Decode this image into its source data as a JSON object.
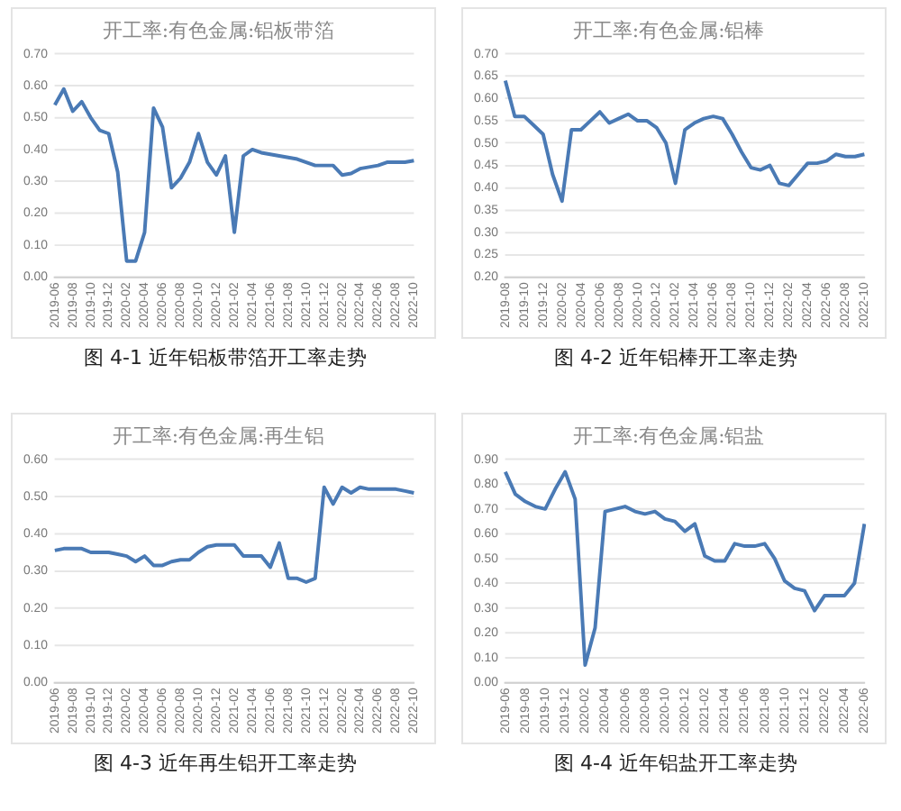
{
  "chart_data": [
    {
      "type": "line",
      "title": "开工率:有色金属:铝板带箔",
      "annotations": [
        "图 4-1 近年铝板带箔开工率走势"
      ],
      "categories": [
        "2019-06",
        null,
        "2019-08",
        null,
        "2019-10",
        null,
        "2019-12",
        null,
        "2020-02",
        null,
        "2020-04",
        null,
        "2020-06",
        null,
        "2020-08",
        null,
        "2020-10",
        null,
        "2020-12",
        null,
        "2021-02",
        null,
        "2021-04",
        null,
        "2021-06",
        null,
        "2021-08",
        null,
        "2021-10",
        null,
        "2021-12",
        null,
        "2022-02",
        null,
        "2022-04",
        null,
        "2022-06",
        null,
        "2022-08",
        null,
        "2022-10"
      ],
      "series": [
        {
          "color": "#4a7ab5",
          "values": [
            0.54,
            0.59,
            0.52,
            0.55,
            0.5,
            0.46,
            0.45,
            0.33,
            0.05,
            0.05,
            0.14,
            0.53,
            0.47,
            0.28,
            0.31,
            0.36,
            0.45,
            0.36,
            0.32,
            0.38,
            0.14,
            0.38,
            0.4,
            0.39,
            0.385,
            0.38,
            0.375,
            0.37,
            0.36,
            0.35,
            0.35,
            0.35,
            0.32,
            0.325,
            0.34,
            0.345,
            0.35,
            0.36,
            0.36,
            0.36,
            0.365
          ]
        }
      ],
      "ylim": [
        0,
        0.7
      ],
      "yticks": [
        {
          "value": 0,
          "label": "0.00"
        },
        {
          "value": 0.1,
          "label": "0.10"
        },
        {
          "value": 0.2,
          "label": "0.20"
        },
        {
          "value": 0.3,
          "label": "0.30"
        },
        {
          "value": 0.4,
          "label": "0.40"
        },
        {
          "value": 0.5,
          "label": "0.50"
        },
        {
          "value": 0.6,
          "label": "0.60"
        },
        {
          "value": 0.7,
          "label": "0.70"
        }
      ],
      "grid": "y",
      "legend": false,
      "marker": "none"
    },
    {
      "type": "line",
      "title": "开工率:有色金属:铝棒",
      "annotations": [
        "图 4-2 近年铝棒开工率走势"
      ],
      "categories": [
        "2019-08",
        null,
        "2019-10",
        null,
        "2019-12",
        null,
        "2020-02",
        null,
        "2020-04",
        null,
        "2020-06",
        null,
        "2020-08",
        null,
        "2020-10",
        null,
        "2020-12",
        null,
        "2021-02",
        null,
        "2021-04",
        null,
        "2021-06",
        null,
        "2021-08",
        null,
        "2021-10",
        null,
        "2021-12",
        null,
        "2022-02",
        null,
        "2022-04",
        null,
        "2022-06",
        null,
        "2022-08",
        null,
        "2022-10"
      ],
      "series": [
        {
          "color": "#4a7ab5",
          "values": [
            0.64,
            0.56,
            0.56,
            0.54,
            0.52,
            0.43,
            0.37,
            0.53,
            0.53,
            0.55,
            0.57,
            0.545,
            0.555,
            0.565,
            0.55,
            0.55,
            0.535,
            0.5,
            0.41,
            0.53,
            0.545,
            0.555,
            0.56,
            0.555,
            0.52,
            0.48,
            0.445,
            0.44,
            0.45,
            0.41,
            0.405,
            0.43,
            0.455,
            0.455,
            0.46,
            0.475,
            0.47,
            0.47,
            0.475
          ]
        }
      ],
      "ylim": [
        0.2,
        0.7
      ],
      "yticks": [
        {
          "value": 0.2,
          "label": "0.20"
        },
        {
          "value": 0.25,
          "label": "0.25"
        },
        {
          "value": 0.3,
          "label": "0.30"
        },
        {
          "value": 0.35,
          "label": "0.35"
        },
        {
          "value": 0.4,
          "label": "0.40"
        },
        {
          "value": 0.45,
          "label": "0.45"
        },
        {
          "value": 0.5,
          "label": "0.50"
        },
        {
          "value": 0.55,
          "label": "0.55"
        },
        {
          "value": 0.6,
          "label": "0.60"
        },
        {
          "value": 0.65,
          "label": "0.65"
        },
        {
          "value": 0.7,
          "label": "0.70"
        }
      ],
      "grid": "y",
      "legend": false,
      "marker": "none"
    },
    {
      "type": "line",
      "title": "开工率:有色金属:再生铝",
      "annotations": [
        "图 4-3 近年再生铝开工率走势"
      ],
      "categories": [
        "2019-06",
        null,
        "2019-08",
        null,
        "2019-10",
        null,
        "2019-12",
        null,
        "2020-02",
        null,
        "2020-04",
        null,
        "2020-06",
        null,
        "2020-08",
        null,
        "2020-10",
        null,
        "2020-12",
        null,
        "2021-02",
        null,
        "2021-04",
        null,
        "2021-06",
        null,
        "2021-08",
        null,
        "2021-10",
        null,
        "2021-12",
        null,
        "2022-02",
        null,
        "2022-04",
        null,
        "2022-06",
        null,
        "2022-08",
        null,
        "2022-10"
      ],
      "series": [
        {
          "color": "#4a7ab5",
          "values": [
            0.355,
            0.36,
            0.36,
            0.36,
            0.35,
            0.35,
            0.35,
            0.345,
            0.34,
            0.325,
            0.34,
            0.315,
            0.315,
            0.325,
            0.33,
            0.33,
            0.35,
            0.365,
            0.37,
            0.37,
            0.37,
            0.34,
            0.34,
            0.34,
            0.31,
            0.375,
            0.28,
            0.28,
            0.27,
            0.28,
            0.525,
            0.48,
            0.525,
            0.51,
            0.525,
            0.52,
            0.52,
            0.52,
            0.52,
            0.515,
            0.51
          ]
        }
      ],
      "ylim": [
        0,
        0.6
      ],
      "yticks": [
        {
          "value": 0,
          "label": "0.00"
        },
        {
          "value": 0.1,
          "label": "0.10"
        },
        {
          "value": 0.2,
          "label": "0.20"
        },
        {
          "value": 0.3,
          "label": "0.30"
        },
        {
          "value": 0.4,
          "label": "0.40"
        },
        {
          "value": 0.5,
          "label": "0.50"
        },
        {
          "value": 0.6,
          "label": "0.60"
        }
      ],
      "grid": "y",
      "legend": false,
      "marker": "none"
    },
    {
      "type": "line",
      "title": "开工率:有色金属:铝盐",
      "annotations": [
        "图 4-4 近年铝盐开工率走势"
      ],
      "categories": [
        "2019-06",
        null,
        "2019-08",
        null,
        "2019-10",
        null,
        "2019-12",
        null,
        "2020-02",
        null,
        "2020-04",
        null,
        "2020-06",
        null,
        "2020-08",
        null,
        "2020-10",
        null,
        "2020-12",
        null,
        "2021-02",
        null,
        "2021-04",
        null,
        "2021-06",
        null,
        "2021-08",
        null,
        "2021-10",
        null,
        "2021-12",
        null,
        "2022-02",
        null,
        "2022-04",
        null,
        "2022-06"
      ],
      "series": [
        {
          "color": "#4a7ab5",
          "values": [
            0.85,
            0.76,
            0.73,
            0.71,
            0.7,
            0.78,
            0.85,
            0.74,
            0.07,
            0.22,
            0.69,
            0.7,
            0.71,
            0.69,
            0.68,
            0.69,
            0.66,
            0.65,
            0.61,
            0.64,
            0.51,
            0.49,
            0.49,
            0.56,
            0.55,
            0.55,
            0.56,
            0.5,
            0.41,
            0.38,
            0.37,
            0.29,
            0.35,
            0.35,
            0.35,
            0.4,
            0.64
          ]
        }
      ],
      "ylim": [
        0,
        0.9
      ],
      "yticks": [
        {
          "value": 0,
          "label": "0.00"
        },
        {
          "value": 0.1,
          "label": "0.10"
        },
        {
          "value": 0.2,
          "label": "0.20"
        },
        {
          "value": 0.3,
          "label": "0.30"
        },
        {
          "value": 0.4,
          "label": "0.40"
        },
        {
          "value": 0.5,
          "label": "0.50"
        },
        {
          "value": 0.6,
          "label": "0.60"
        },
        {
          "value": 0.7,
          "label": "0.70"
        },
        {
          "value": 0.8,
          "label": "0.80"
        },
        {
          "value": 0.9,
          "label": "0.90"
        }
      ],
      "grid": "y",
      "legend": false,
      "marker": "none"
    }
  ]
}
